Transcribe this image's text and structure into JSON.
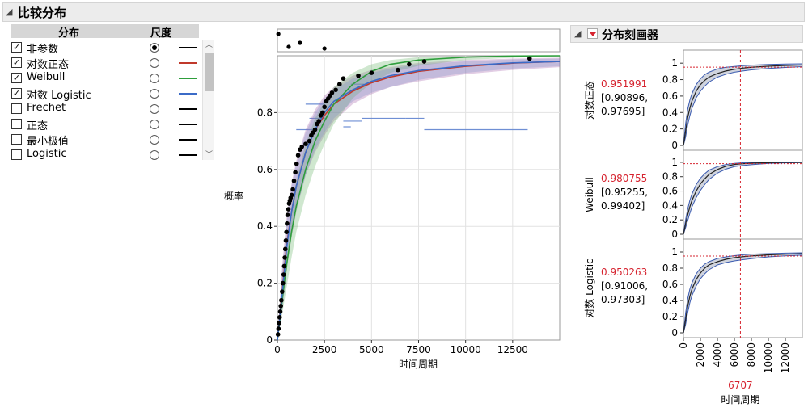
{
  "title": "比较分布",
  "table": {
    "header_dist": "分布",
    "header_scale": "尺度",
    "rows": [
      {
        "label": "非参数",
        "checked": true,
        "selected": true,
        "color": "#000000"
      },
      {
        "label": "对数正态",
        "checked": true,
        "selected": false,
        "color": "#c0392b"
      },
      {
        "label": "Weibull",
        "checked": true,
        "selected": false,
        "color": "#2e9e3c"
      },
      {
        "label": "对数 Logistic",
        "checked": true,
        "selected": false,
        "color": "#3b6bc7"
      },
      {
        "label": "Frechet",
        "checked": false,
        "selected": false,
        "color": "#000000"
      },
      {
        "label": "正态",
        "checked": false,
        "selected": false,
        "color": "#000000"
      },
      {
        "label": "最小极值",
        "checked": false,
        "selected": false,
        "color": "#000000"
      },
      {
        "label": "Logistic",
        "checked": false,
        "selected": false,
        "color": "#000000"
      }
    ],
    "check_glyph": "✓"
  },
  "icons": {
    "collapse": "◢",
    "scroll_up": "︿",
    "scroll_down": "﹀",
    "menu": "red-triangle-menu-icon"
  },
  "chart_data": [
    {
      "type": "line",
      "xlabel": "时间周期",
      "ylabel": "概率",
      "xlim": [
        0,
        15000
      ],
      "ylim": [
        0,
        1
      ],
      "xticks": [
        0,
        2500,
        5000,
        7500,
        10000,
        12500
      ],
      "xtick_labels": [
        "0",
        "2500",
        "5000",
        "7500",
        "10000",
        "12500"
      ],
      "yticks": [
        0,
        0.2,
        0.4,
        0.6,
        0.8
      ],
      "ytick_labels": [
        "0",
        "0.2",
        "0.4",
        "0.6",
        "0.8"
      ],
      "grid": true,
      "censored_points": [
        [
          50,
          1
        ],
        [
          600,
          1
        ],
        [
          1200,
          1
        ],
        [
          2500,
          1
        ]
      ],
      "nonparametric_points": [
        [
          30,
          0.02
        ],
        [
          60,
          0.04
        ],
        [
          90,
          0.06
        ],
        [
          120,
          0.08
        ],
        [
          150,
          0.1
        ],
        [
          180,
          0.12
        ],
        [
          210,
          0.14
        ],
        [
          250,
          0.17
        ],
        [
          290,
          0.2
        ],
        [
          330,
          0.23
        ],
        [
          360,
          0.26
        ],
        [
          390,
          0.29
        ],
        [
          420,
          0.32
        ],
        [
          450,
          0.35
        ],
        [
          480,
          0.38
        ],
        [
          510,
          0.41
        ],
        [
          540,
          0.44
        ],
        [
          580,
          0.46
        ],
        [
          620,
          0.48
        ],
        [
          660,
          0.49
        ],
        [
          700,
          0.5
        ],
        [
          760,
          0.51
        ],
        [
          820,
          0.53
        ],
        [
          880,
          0.56
        ],
        [
          950,
          0.59
        ],
        [
          1020,
          0.62
        ],
        [
          1100,
          0.65
        ],
        [
          1200,
          0.67
        ],
        [
          1300,
          0.68
        ],
        [
          1500,
          0.69
        ],
        [
          1700,
          0.7
        ],
        [
          1800,
          0.72
        ],
        [
          1900,
          0.73
        ],
        [
          2000,
          0.74
        ],
        [
          2100,
          0.76
        ],
        [
          2200,
          0.77
        ],
        [
          2300,
          0.79
        ],
        [
          2400,
          0.8
        ],
        [
          2500,
          0.82
        ],
        [
          2600,
          0.84
        ],
        [
          2700,
          0.85
        ],
        [
          2800,
          0.86
        ],
        [
          2900,
          0.87
        ],
        [
          3100,
          0.88
        ],
        [
          3300,
          0.9
        ],
        [
          3500,
          0.92
        ],
        [
          4300,
          0.93
        ],
        [
          5000,
          0.94
        ],
        [
          6400,
          0.95
        ],
        [
          7000,
          0.97
        ],
        [
          7800,
          0.98
        ],
        [
          13400,
          0.99
        ]
      ],
      "series": [
        {
          "name": "对数正态",
          "color": "#c0392b",
          "band_color": "#a05aa6",
          "x": [
            0,
            250,
            500,
            750,
            1000,
            1500,
            2000,
            2500,
            3000,
            4000,
            5000,
            6000,
            7500,
            10000,
            12500,
            15000
          ],
          "y": [
            0,
            0.17,
            0.34,
            0.45,
            0.54,
            0.66,
            0.74,
            0.79,
            0.83,
            0.875,
            0.905,
            0.925,
            0.945,
            0.963,
            0.974,
            0.98
          ],
          "lower": [
            0,
            0.1,
            0.25,
            0.36,
            0.45,
            0.58,
            0.66,
            0.72,
            0.77,
            0.83,
            0.865,
            0.89,
            0.91,
            0.935,
            0.95,
            0.96
          ],
          "upper": [
            0,
            0.26,
            0.44,
            0.55,
            0.63,
            0.74,
            0.81,
            0.86,
            0.89,
            0.93,
            0.95,
            0.96,
            0.975,
            0.985,
            0.99,
            0.993
          ]
        },
        {
          "name": "Weibull",
          "color": "#2e9e3c",
          "band_color": "#5fae5f",
          "x": [
            0,
            250,
            500,
            750,
            1000,
            1500,
            2000,
            2500,
            3000,
            4000,
            5000,
            6000,
            7500,
            10000,
            12500,
            15000
          ],
          "y": [
            0,
            0.14,
            0.27,
            0.38,
            0.47,
            0.6,
            0.7,
            0.77,
            0.83,
            0.9,
            0.945,
            0.97,
            0.985,
            0.995,
            0.999,
            1
          ],
          "lower": [
            0,
            0.09,
            0.19,
            0.29,
            0.38,
            0.51,
            0.61,
            0.69,
            0.76,
            0.85,
            0.905,
            0.94,
            0.965,
            0.985,
            0.993,
            0.997
          ],
          "upper": [
            0,
            0.2,
            0.35,
            0.47,
            0.56,
            0.69,
            0.78,
            0.84,
            0.89,
            0.94,
            0.97,
            0.985,
            0.995,
            0.999,
            1,
            1
          ]
        },
        {
          "name": "对数 Logistic",
          "color": "#3b6bc7",
          "band_color": "#7b8fc8",
          "x": [
            0,
            250,
            500,
            750,
            1000,
            1500,
            2000,
            2500,
            3000,
            4000,
            5000,
            6000,
            7500,
            10000,
            12500,
            15000
          ],
          "y": [
            0,
            0.16,
            0.33,
            0.45,
            0.54,
            0.66,
            0.74,
            0.8,
            0.84,
            0.88,
            0.91,
            0.93,
            0.948,
            0.965,
            0.975,
            0.98
          ],
          "lower": [
            0,
            0.1,
            0.25,
            0.37,
            0.46,
            0.58,
            0.67,
            0.73,
            0.78,
            0.84,
            0.87,
            0.89,
            0.915,
            0.94,
            0.955,
            0.963
          ],
          "upper": [
            0,
            0.24,
            0.42,
            0.54,
            0.62,
            0.73,
            0.8,
            0.85,
            0.88,
            0.92,
            0.94,
            0.955,
            0.97,
            0.98,
            0.987,
            0.99
          ]
        }
      ],
      "interval_segments": [
        {
          "x0": 3900,
          "x1": 4600,
          "y": 0.9
        },
        {
          "x0": 3500,
          "x1": 3900,
          "y": 0.75
        },
        {
          "x0": 1500,
          "x1": 2500,
          "y": 0.83
        },
        {
          "x0": 1700,
          "x1": 2600,
          "y": 0.78
        },
        {
          "x0": 1000,
          "x1": 1900,
          "y": 0.74
        },
        {
          "x0": 3500,
          "x1": 4500,
          "y": 0.77
        },
        {
          "x0": 4500,
          "x1": 6800,
          "y": 0.78
        },
        {
          "x0": 6800,
          "x1": 7800,
          "y": 0.78
        },
        {
          "x0": 7800,
          "x1": 13300,
          "y": 0.74
        }
      ]
    },
    {
      "type": "line",
      "title": "分布刻画器",
      "xlabel": "时间周期",
      "xlim": [
        0,
        14000
      ],
      "ylim": [
        0,
        1.1
      ],
      "xticks": [
        0,
        2000,
        4000,
        6000,
        8000,
        10000,
        12000
      ],
      "xtick_labels": [
        "0",
        "2000",
        "4000",
        "6000",
        "8000",
        "10000",
        "12000"
      ],
      "yticks": [
        0,
        0.2,
        0.4,
        0.6,
        0.8,
        1
      ],
      "ytick_labels": [
        "0",
        "0.2",
        "0.4",
        "0.6",
        "0.8",
        "1"
      ],
      "current_x": 6707,
      "current_x_label": "6707",
      "panels": [
        {
          "name": "对数正态",
          "value": 0.951991,
          "value_label": "0.951991",
          "ci_lines": [
            "[0.90896,",
            "0.97695]"
          ],
          "x": [
            0,
            250,
            500,
            750,
            1000,
            1500,
            2000,
            2500,
            3000,
            4000,
            5000,
            6000,
            7000,
            8000,
            10000,
            12000,
            14000
          ],
          "y": [
            0,
            0.17,
            0.34,
            0.45,
            0.54,
            0.66,
            0.74,
            0.79,
            0.83,
            0.875,
            0.905,
            0.925,
            0.94,
            0.95,
            0.963,
            0.972,
            0.978
          ],
          "lower": [
            0,
            0.1,
            0.25,
            0.36,
            0.45,
            0.58,
            0.66,
            0.72,
            0.77,
            0.83,
            0.865,
            0.89,
            0.905,
            0.918,
            0.935,
            0.948,
            0.957
          ],
          "upper": [
            0,
            0.26,
            0.44,
            0.55,
            0.63,
            0.74,
            0.81,
            0.86,
            0.89,
            0.93,
            0.95,
            0.96,
            0.97,
            0.976,
            0.985,
            0.989,
            0.992
          ]
        },
        {
          "name": "Weibull",
          "value": 0.980755,
          "value_label": "0.980755",
          "ci_lines": [
            "[0.95255,",
            "0.99402]"
          ],
          "x": [
            0,
            250,
            500,
            750,
            1000,
            1500,
            2000,
            2500,
            3000,
            4000,
            5000,
            6000,
            7000,
            8000,
            10000,
            12000,
            14000
          ],
          "y": [
            0,
            0.14,
            0.27,
            0.38,
            0.47,
            0.6,
            0.7,
            0.77,
            0.83,
            0.9,
            0.945,
            0.97,
            0.98,
            0.988,
            0.995,
            0.998,
            0.999
          ],
          "lower": [
            0,
            0.09,
            0.19,
            0.29,
            0.38,
            0.51,
            0.61,
            0.69,
            0.76,
            0.85,
            0.905,
            0.94,
            0.955,
            0.967,
            0.985,
            0.992,
            0.996
          ],
          "upper": [
            0,
            0.2,
            0.35,
            0.47,
            0.56,
            0.69,
            0.78,
            0.84,
            0.89,
            0.94,
            0.97,
            0.985,
            0.993,
            0.997,
            0.999,
            1,
            1
          ]
        },
        {
          "name": "对数 Logistic",
          "value": 0.950263,
          "value_label": "0.950263",
          "ci_lines": [
            "[0.91006,",
            "0.97303]"
          ],
          "x": [
            0,
            250,
            500,
            750,
            1000,
            1500,
            2000,
            2500,
            3000,
            4000,
            5000,
            6000,
            7000,
            8000,
            10000,
            12000,
            14000
          ],
          "y": [
            0,
            0.16,
            0.33,
            0.45,
            0.54,
            0.66,
            0.74,
            0.8,
            0.84,
            0.88,
            0.91,
            0.93,
            0.942,
            0.952,
            0.965,
            0.973,
            0.979
          ],
          "lower": [
            0,
            0.1,
            0.25,
            0.37,
            0.46,
            0.58,
            0.67,
            0.73,
            0.78,
            0.84,
            0.87,
            0.89,
            0.905,
            0.918,
            0.94,
            0.953,
            0.961
          ],
          "upper": [
            0,
            0.24,
            0.42,
            0.54,
            0.62,
            0.73,
            0.8,
            0.85,
            0.88,
            0.92,
            0.94,
            0.955,
            0.966,
            0.974,
            0.98,
            0.986,
            0.99
          ]
        }
      ]
    }
  ]
}
